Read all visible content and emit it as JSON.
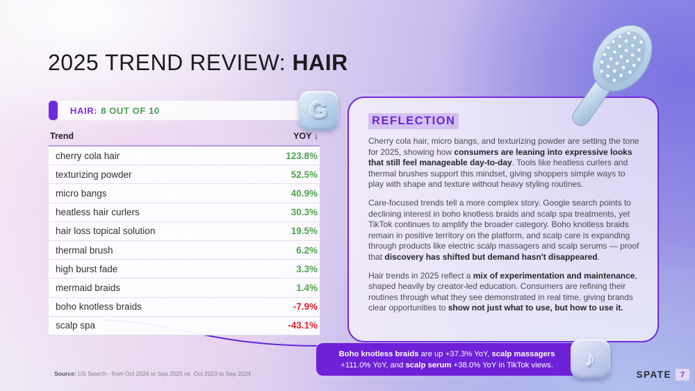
{
  "title": {
    "prefix": "2025 TREND REVIEW: ",
    "highlight": "HAIR"
  },
  "score_bar": {
    "category_label": "HAIR:",
    "score_label": "8 OUT OF 10",
    "icon": "google-g-3d-icon",
    "icon_glyph": "G"
  },
  "table": {
    "headers": {
      "trend": "Trend",
      "yoy": "YOY ↓"
    },
    "rows": [
      {
        "trend": "cherry cola hair",
        "yoy": "123.8%"
      },
      {
        "trend": "texturizing powder",
        "yoy": "52.5%"
      },
      {
        "trend": "micro bangs",
        "yoy": "40.9%"
      },
      {
        "trend": "heatless hair curlers",
        "yoy": "30.3%"
      },
      {
        "trend": "hair loss topical solution",
        "yoy": "19.5%"
      },
      {
        "trend": "thermal brush",
        "yoy": "6.2%"
      },
      {
        "trend": "high burst fade",
        "yoy": "3.3%"
      },
      {
        "trend": "mermaid braids",
        "yoy": "1.4%"
      },
      {
        "trend": "boho knotless braids",
        "yoy": "-7.9%"
      },
      {
        "trend": "scalp spa",
        "yoy": "-43.1%"
      }
    ]
  },
  "reflection": {
    "heading": "REFLECTION",
    "paragraphs": [
      [
        {
          "t": "Cherry cola hair, micro bangs, and texturizing powder are setting the tone for 2025, showing how ",
          "b": false
        },
        {
          "t": "consumers are leaning into expressive looks that still feel manageable day-to-day",
          "b": true
        },
        {
          "t": ". Tools like heatless curlers and thermal brushes support this mindset, giving shoppers simple ways to play with shape and texture without heavy styling routines.",
          "b": false
        }
      ],
      [
        {
          "t": "Care-focused trends tell a more complex story. Google search points to declining interest in boho knotless braids and scalp spa treatments, yet TikTok continues to amplify the broader category. Boho knotless braids remain in positive territory on the platform, and scalp care is expanding through products like electric scalp massagers and scalp serums — proof that ",
          "b": false
        },
        {
          "t": "discovery has shifted but demand hasn't disappeared",
          "b": true
        },
        {
          "t": ".",
          "b": false
        }
      ],
      [
        {
          "t": "Hair trends in 2025 reflect a ",
          "b": false
        },
        {
          "t": "mix of experimentation and maintenance",
          "b": true
        },
        {
          "t": ", shaped heavily by creator-led education. Consumers are refining their routines through what they see demonstrated in real time, giving brands clear opportunities to ",
          "b": false
        },
        {
          "t": "show not just what to use, but how to use it.",
          "b": true
        }
      ]
    ]
  },
  "callout": {
    "segments": [
      {
        "t": "Boho knotless braids",
        "b": true
      },
      {
        "t": " are up +37.3% YoY, ",
        "b": false
      },
      {
        "t": "scalp massagers",
        "b": true
      },
      {
        "t": " +111.0% YoY, and ",
        "b": false
      },
      {
        "t": "scalp serum",
        "b": true
      },
      {
        "t": " +38.0% YoY in TikTok views.",
        "b": false
      }
    ],
    "icon": "tiktok-3d-icon",
    "icon_glyph": "♪"
  },
  "footer": {
    "source_label": "Source:",
    "source_text": " US Search - from Oct 2024 to Sep 2025 vs. Oct 2023 to Sep 2024",
    "brand": "SPATE",
    "page_number": "7"
  },
  "colors": {
    "accent_purple": "#6d28dd",
    "callout_purple": "#6c1dd8",
    "positive_green": "#4da24c",
    "negative_red": "#e01d24"
  },
  "chart_data": {
    "type": "table",
    "title": "HAIR: 8 OUT OF 10",
    "columns": [
      "Trend",
      "YOY"
    ],
    "categories": [
      "cherry cola hair",
      "texturizing powder",
      "micro bangs",
      "heatless hair curlers",
      "hair loss topical solution",
      "thermal brush",
      "high burst fade",
      "mermaid braids",
      "boho knotless braids",
      "scalp spa"
    ],
    "values": [
      123.8,
      52.5,
      40.9,
      30.3,
      19.5,
      6.2,
      3.3,
      1.4,
      -7.9,
      -43.1
    ],
    "unit": "% YoY"
  }
}
